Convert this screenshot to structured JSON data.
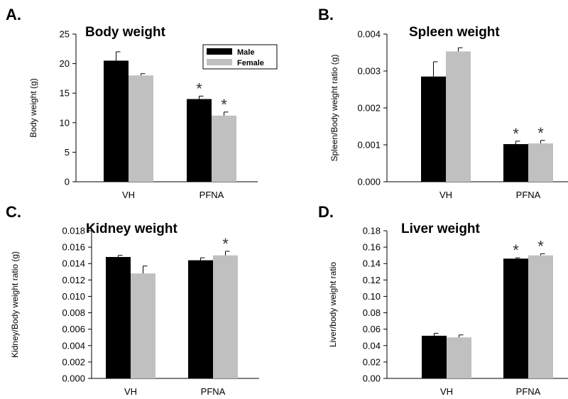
{
  "colors": {
    "male": "#000000",
    "female": "#c0c0c0"
  },
  "legend": [
    "Male",
    "Female"
  ],
  "chart_data": [
    {
      "panel": "A.",
      "type": "bar",
      "title": "Body weight",
      "ylabel": "Body weight (g)",
      "categories": [
        "VH",
        "PFNA"
      ],
      "ylim": [
        0,
        25
      ],
      "yticks": [
        "0",
        "5",
        "10",
        "15",
        "20",
        "25"
      ],
      "series": [
        {
          "name": "Male",
          "values": [
            20.5,
            14.0
          ],
          "errors": [
            1.5,
            0.5
          ]
        },
        {
          "name": "Female",
          "values": [
            18.0,
            11.2
          ],
          "errors": [
            0.3,
            0.6
          ]
        }
      ],
      "significance": [
        [
          false,
          true
        ],
        [
          false,
          true
        ]
      ],
      "legend_placement": "top-right",
      "grid": false
    },
    {
      "panel": "B.",
      "type": "bar",
      "title": "Spleen weight",
      "ylabel": "Spleen/Body weight ratio (g)",
      "categories": [
        "VH",
        "PFNA"
      ],
      "ylim": [
        0,
        0.004
      ],
      "yticks": [
        "0.000",
        "0.001",
        "0.002",
        "0.003",
        "0.004"
      ],
      "series": [
        {
          "name": "Male",
          "values": [
            0.00285,
            0.00102
          ],
          "errors": [
            0.0004,
            8e-05
          ]
        },
        {
          "name": "Female",
          "values": [
            0.00353,
            0.00104
          ],
          "errors": [
            0.0001,
            8e-05
          ]
        }
      ],
      "significance": [
        [
          false,
          true
        ],
        [
          false,
          true
        ]
      ],
      "grid": false
    },
    {
      "panel": "C.",
      "type": "bar",
      "title": "Kidney weight",
      "ylabel": "Kidney/Body weight ratio (g)",
      "categories": [
        "VH",
        "PFNA"
      ],
      "ylim": [
        0,
        0.018
      ],
      "yticks": [
        "0.000",
        "0.002",
        "0.004",
        "0.006",
        "0.008",
        "0.010",
        "0.012",
        "0.014",
        "0.016",
        "0.018"
      ],
      "series": [
        {
          "name": "Male",
          "values": [
            0.0148,
            0.0144
          ],
          "errors": [
            0.0002,
            0.0003
          ]
        },
        {
          "name": "Female",
          "values": [
            0.0128,
            0.015
          ],
          "errors": [
            0.0009,
            0.0005
          ]
        }
      ],
      "significance": [
        [
          false,
          false
        ],
        [
          false,
          true
        ]
      ],
      "grid": false
    },
    {
      "panel": "D.",
      "type": "bar",
      "title": "Liver weight",
      "ylabel": "Liver/body weight ratio",
      "categories": [
        "VH",
        "PFNA"
      ],
      "ylim": [
        0,
        0.18
      ],
      "yticks": [
        "0.00",
        "0.02",
        "0.04",
        "0.06",
        "0.08",
        "0.10",
        "0.12",
        "0.14",
        "0.16",
        "0.18"
      ],
      "series": [
        {
          "name": "Male",
          "values": [
            0.052,
            0.146
          ],
          "errors": [
            0.003,
            0.001
          ]
        },
        {
          "name": "Female",
          "values": [
            0.05,
            0.15
          ],
          "errors": [
            0.003,
            0.002
          ]
        }
      ],
      "significance": [
        [
          false,
          true
        ],
        [
          false,
          true
        ]
      ],
      "grid": false
    }
  ]
}
